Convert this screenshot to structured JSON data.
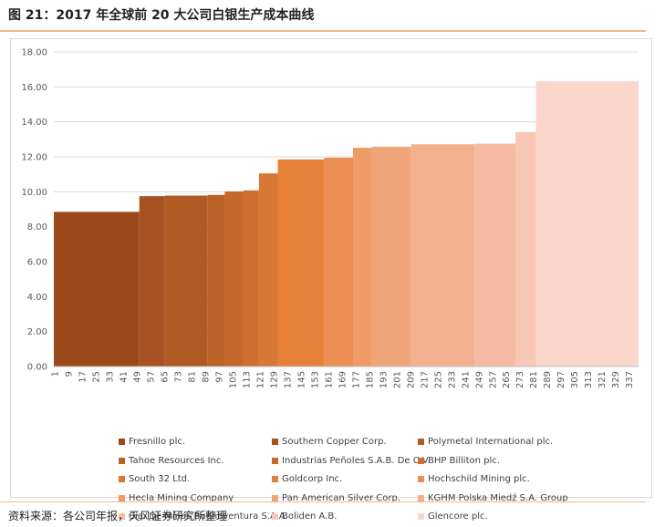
{
  "figure": {
    "title": "图 21：2017 年全球前 20 大公司白银生产成本曲线",
    "source": "资料来源：各公司年报，天风证券研究所整理"
  },
  "chart_data": {
    "type": "bar",
    "title": "",
    "xlabel": "",
    "ylabel": "",
    "ylim": [
      0,
      18
    ],
    "yticks": [
      "0.00",
      "2.00",
      "4.00",
      "6.00",
      "8.00",
      "10.00",
      "12.00",
      "14.00",
      "16.00",
      "18.00"
    ],
    "xlim": [
      1,
      343
    ],
    "xticks": [
      1,
      9,
      17,
      25,
      33,
      41,
      49,
      57,
      65,
      73,
      81,
      89,
      97,
      105,
      113,
      121,
      129,
      137,
      145,
      153,
      161,
      169,
      177,
      185,
      193,
      201,
      209,
      217,
      225,
      233,
      241,
      249,
      257,
      265,
      273,
      281,
      289,
      297,
      305,
      313,
      321,
      329,
      337
    ],
    "grid": true,
    "legend_position": "bottom",
    "series": [
      {
        "name": "Fresnillo plc.",
        "x_start": 1,
        "x_end": 51,
        "value": 8.85,
        "color": "#9c4a1a"
      },
      {
        "name": "Southern Copper Corp.",
        "x_start": 51,
        "x_end": 66,
        "value": 9.75,
        "color": "#a65220"
      },
      {
        "name": "Polymetal International plc.",
        "x_start": 66,
        "x_end": 91,
        "value": 9.78,
        "color": "#b05a24"
      },
      {
        "name": "Tahoe Resources Inc.",
        "x_start": 91,
        "x_end": 101,
        "value": 9.82,
        "color": "#ba6128"
      },
      {
        "name": "Industrias Peñoles S.A.B. De C.V.",
        "x_start": 101,
        "x_end": 112,
        "value": 10.02,
        "color": "#c4682c"
      },
      {
        "name": "BHP Billiton plc.",
        "x_start": 112,
        "x_end": 121,
        "value": 10.08,
        "color": "#ce6f30"
      },
      {
        "name": "South 32 Ltd.",
        "x_start": 121,
        "x_end": 132,
        "value": 11.05,
        "color": "#d87633"
      },
      {
        "name": "Goldcorp Inc.",
        "x_start": 132,
        "x_end": 159,
        "value": 11.85,
        "color": "#e67f38"
      },
      {
        "name": "Hochschild Mining plc.",
        "x_start": 159,
        "x_end": 176,
        "value": 11.95,
        "color": "#ec8d53"
      },
      {
        "name": "Hecla Mining Company",
        "x_start": 176,
        "x_end": 187,
        "value": 12.52,
        "color": "#ef9a67"
      },
      {
        "name": "Pan American Silver Corp.",
        "x_start": 187,
        "x_end": 210,
        "value": 12.58,
        "color": "#f1a57a"
      },
      {
        "name": "KGHM Polska Miedź S.A. Group",
        "x_start": 210,
        "x_end": 247,
        "value": 12.72,
        "color": "#f3b08e"
      },
      {
        "name": "Cia. De Minas Buenaventura S.A.A.",
        "x_start": 247,
        "x_end": 271,
        "value": 12.75,
        "color": "#f5bba2"
      },
      {
        "name": "Boliden A.B.",
        "x_start": 271,
        "x_end": 283,
        "value": 13.42,
        "color": "#f8c7b5"
      },
      {
        "name": "Glencore plc.",
        "x_start": 283,
        "x_end": 343,
        "value": 16.32,
        "color": "#fad6cb"
      }
    ]
  }
}
